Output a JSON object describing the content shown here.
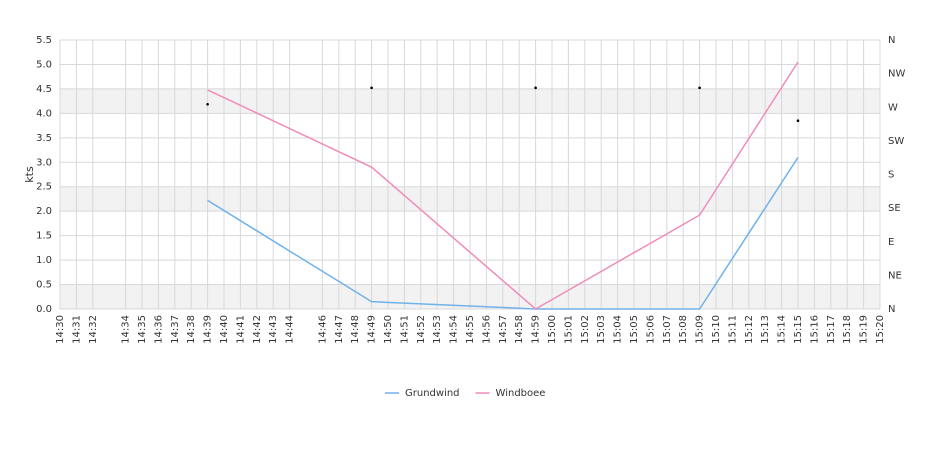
{
  "chart_data": {
    "type": "line",
    "y_label": "kts",
    "x": [
      "14:39",
      "14:49",
      "14:59",
      "15:09",
      "15:15"
    ],
    "xlim": [
      "14:30",
      "15:20"
    ],
    "xticks": [
      "14:30",
      "14:31",
      "14:32",
      "14:34",
      "14:35",
      "14:36",
      "14:37",
      "14:38",
      "14:39",
      "14:40",
      "14:41",
      "14:42",
      "14:43",
      "14:44",
      "14:46",
      "14:47",
      "14:48",
      "14:49",
      "14:50",
      "14:51",
      "14:52",
      "14:53",
      "14:54",
      "14:55",
      "14:56",
      "14:57",
      "14:58",
      "14:59",
      "15:00",
      "15:01",
      "15:02",
      "15:03",
      "15:04",
      "15:05",
      "15:06",
      "15:07",
      "15:08",
      "15:09",
      "15:10",
      "15:11",
      "15:12",
      "15:13",
      "15:14",
      "15:15",
      "15:16",
      "15:17",
      "15:18",
      "15:19",
      "15:20"
    ],
    "ylim": [
      0,
      5.5
    ],
    "yticks": [
      {
        "value": 0,
        "label": "0.0"
      },
      {
        "value": 0.5,
        "label": "0.5"
      },
      {
        "value": 1,
        "label": "1.0"
      },
      {
        "value": 1.5,
        "label": "1.5"
      },
      {
        "value": 2,
        "label": "2.0"
      },
      {
        "value": 2.5,
        "label": "2.5"
      },
      {
        "value": 3,
        "label": "3.0"
      },
      {
        "value": 3.5,
        "label": "3.5"
      },
      {
        "value": 4,
        "label": "4.0"
      },
      {
        "value": 4.5,
        "label": "4.5"
      },
      {
        "value": 5,
        "label": "5.0"
      },
      {
        "value": 5.5,
        "label": "5.5"
      }
    ],
    "y2lim": [
      0,
      360
    ],
    "y2ticks": [
      {
        "value": 0,
        "label": "N"
      },
      {
        "value": 45,
        "label": "NE"
      },
      {
        "value": 90,
        "label": "E"
      },
      {
        "value": 135,
        "label": "SE"
      },
      {
        "value": 180,
        "label": "S"
      },
      {
        "value": 225,
        "label": "SW"
      },
      {
        "value": 270,
        "label": "W"
      },
      {
        "value": 315,
        "label": "NW"
      },
      {
        "value": 360,
        "label": "N"
      }
    ],
    "grid": true,
    "legend": "bottom",
    "series": [
      {
        "name": "Grundwind",
        "color": "#72b2ea",
        "values": [
          2.22,
          0.15,
          0,
          0,
          3.1
        ]
      },
      {
        "name": "Windboee",
        "color": "#f08cba",
        "values": [
          4.48,
          2.9,
          0,
          1.92,
          5.05
        ]
      }
    ],
    "direction": {
      "axis": "y2",
      "color": "#000000",
      "values": [
        274,
        296,
        296,
        296,
        252
      ]
    }
  }
}
